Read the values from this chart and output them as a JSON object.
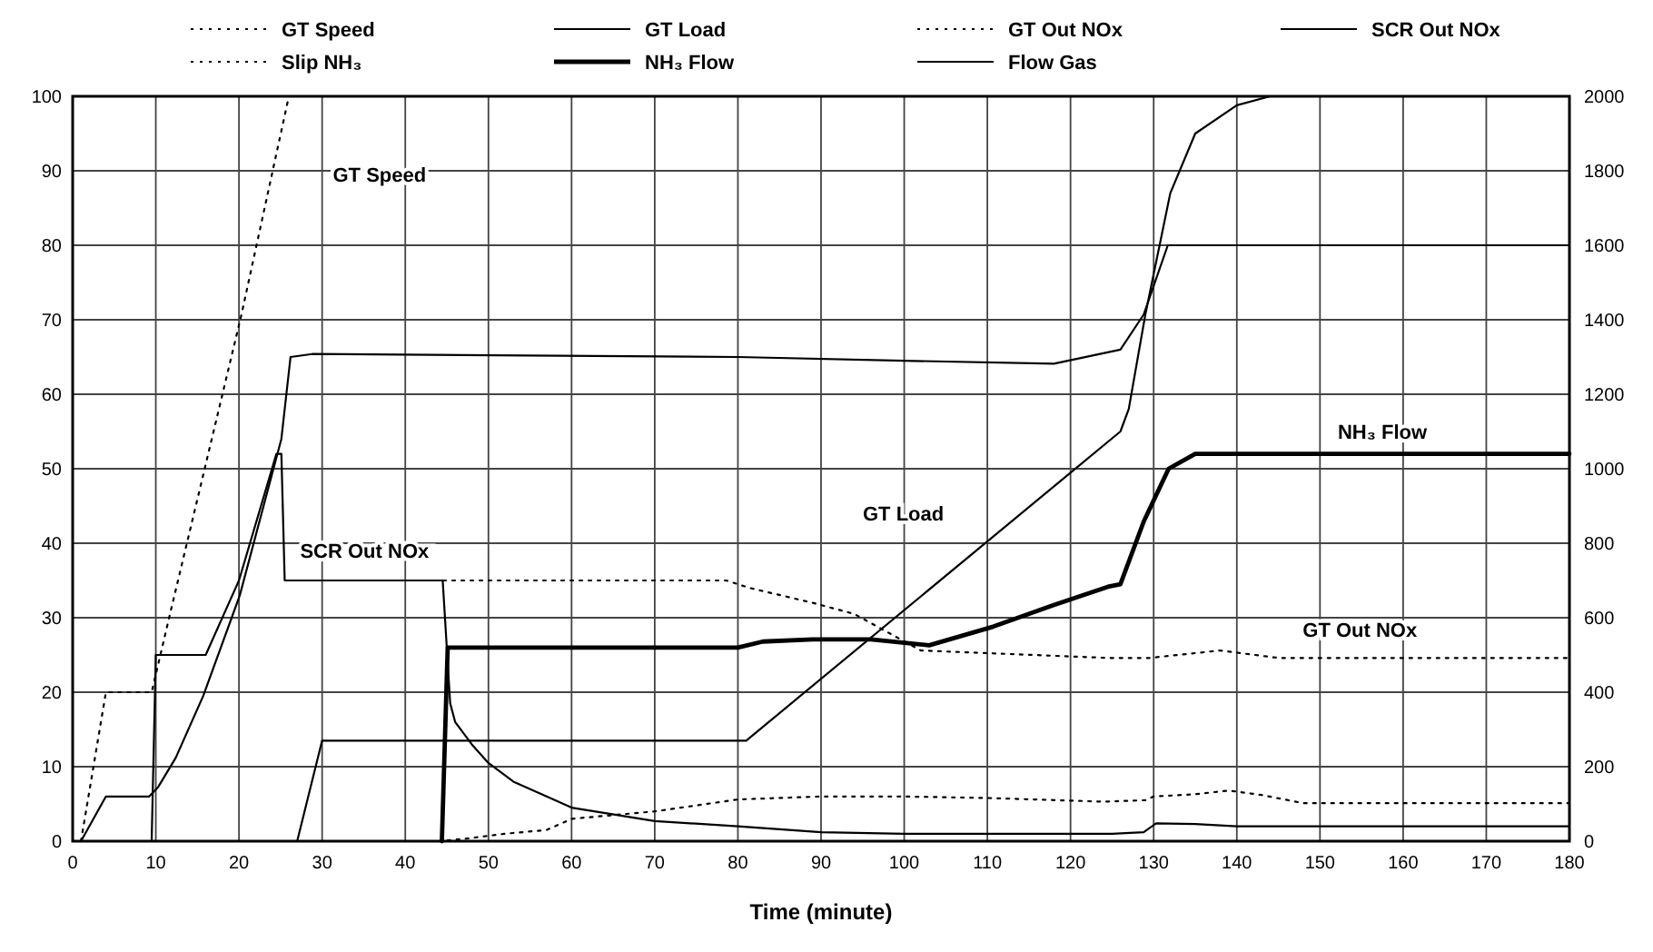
{
  "chart_data": {
    "type": "line",
    "xlabel": "Time (minute)",
    "xlim": [
      0,
      180
    ],
    "xticks": [
      0,
      10,
      20,
      30,
      40,
      50,
      60,
      70,
      80,
      90,
      100,
      110,
      120,
      130,
      140,
      150,
      160,
      170,
      180
    ],
    "ylim": [
      0,
      100
    ],
    "yticks": [
      0,
      10,
      20,
      30,
      40,
      50,
      60,
      70,
      80,
      90,
      100
    ],
    "y2lim": [
      0,
      2000
    ],
    "y2ticks": [
      0,
      200,
      400,
      600,
      800,
      1000,
      1200,
      1400,
      1600,
      1800,
      2000
    ],
    "grid": true,
    "legend": "top",
    "series": [
      {
        "name": "GT Speed",
        "color": "#000000",
        "line_style": "dotted",
        "x": [
          1,
          4,
          9.5,
          11.6,
          20.3,
          26,
          180
        ],
        "values": [
          0,
          20,
          20,
          30,
          70.7,
          100,
          100
        ]
      },
      {
        "name": "GT Load",
        "color": "#000000",
        "line_style": "solid",
        "x": [
          27,
          30,
          81,
          126,
          127,
          129,
          132,
          135,
          140,
          144,
          180
        ],
        "values": [
          0,
          13.5,
          13.5,
          55,
          58,
          70.7,
          87,
          95,
          98.8,
          100,
          100
        ]
      },
      {
        "name": "GT Out NOx",
        "color": "#000000",
        "line_style": "dotted",
        "x": [
          26,
          52,
          78.6,
          81.4,
          89,
          94,
          102,
          124.5,
          129.5,
          138,
          145,
          180
        ],
        "values": [
          35,
          35,
          35,
          34,
          32,
          30.5,
          25.6,
          24.6,
          24.6,
          25.6,
          24.6,
          24.6
        ]
      },
      {
        "name": "SCR Out NOx",
        "color": "#000000",
        "line_style": "solid",
        "x": [
          9.5,
          10,
          16,
          20,
          24.5,
          25.1,
          25.5,
          44.5,
          45.4,
          46,
          48,
          50,
          53,
          57,
          60,
          70,
          80,
          90,
          100,
          125,
          128.8,
          130.3,
          135,
          140,
          180
        ],
        "values": [
          0,
          25,
          25,
          35,
          52,
          52,
          35,
          35,
          18.5,
          16,
          13,
          10.5,
          8,
          6,
          4.5,
          2.7,
          2,
          1.2,
          1,
          1,
          1.2,
          2.4,
          2.3,
          2,
          2
        ]
      },
      {
        "name": "Slip NH₃",
        "color": "#000000",
        "line_style": "dotted",
        "x": [
          44,
          47,
          52,
          57,
          60,
          70,
          80,
          90,
          100,
          110,
          124,
          129,
          130,
          135,
          139,
          143,
          148,
          180
        ],
        "values": [
          0,
          0.3,
          1,
          1.5,
          3,
          4,
          5.6,
          6,
          6,
          5.8,
          5.3,
          5.5,
          6,
          6.3,
          6.8,
          6.2,
          5.1,
          5.1
        ]
      },
      {
        "name": "NH₃ Flow",
        "color": "#000000",
        "line_style": "solid",
        "axis": "y2",
        "x": [
          44.4,
          45.1,
          80,
          83,
          89,
          96,
          103,
          110.7,
          118,
          124.5,
          126,
          128.8,
          131.8,
          135,
          180
        ],
        "values": [
          0,
          520,
          520,
          536,
          542,
          542,
          526,
          576,
          634,
          683,
          690,
          858,
          1000,
          1040,
          1040
        ]
      },
      {
        "name": "Flow Gas",
        "color": "#000000",
        "line_style": "solid",
        "x": [
          1,
          4,
          9.2,
          10.3,
          12.4,
          15.7,
          20.1,
          25.1,
          26.2,
          28.8,
          80,
          100,
          118,
          126,
          128.8,
          131.7,
          180
        ],
        "values": [
          0,
          6,
          6,
          7.3,
          11.2,
          19.5,
          33,
          54,
          65,
          65.4,
          65,
          64.5,
          64.1,
          66,
          70.7,
          80,
          80
        ]
      }
    ],
    "annotations": [
      "GT Speed",
      "SCR Out NOx",
      "GT Load",
      "NH₃ Flow",
      "GT Out NOx"
    ]
  }
}
